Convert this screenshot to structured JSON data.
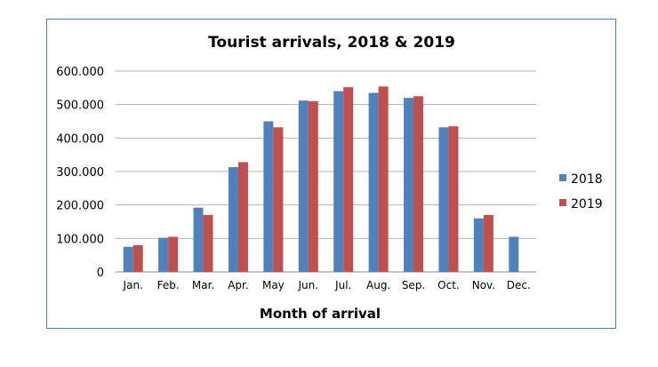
{
  "chart_data": {
    "type": "bar",
    "title": "Tourist arrivals, 2018 & 2019",
    "xlabel": "Month of arrival",
    "ylabel": "",
    "categories": [
      "Jan.",
      "Feb.",
      "Mar.",
      "Apr.",
      "May",
      "Jun.",
      "Jul.",
      "Aug.",
      "Sep.",
      "Oct.",
      "Nov.",
      "Dec."
    ],
    "ylim": [
      0,
      600000
    ],
    "yticks": [
      0,
      100000,
      200000,
      300000,
      400000,
      500000,
      600000
    ],
    "ytick_labels": [
      "0",
      "100.000",
      "200.000",
      "300.000",
      "400.000",
      "500.000",
      "600.000"
    ],
    "grid": true,
    "legend_position": "right",
    "series": [
      {
        "name": "2018",
        "color": "#4f81bd",
        "values": [
          75000,
          102000,
          192000,
          313000,
          450000,
          512000,
          540000,
          535000,
          520000,
          432000,
          160000,
          105000
        ]
      },
      {
        "name": "2019",
        "color": "#c0504d",
        "values": [
          80000,
          105000,
          170000,
          328000,
          432000,
          510000,
          552000,
          554000,
          525000,
          435000,
          170000,
          null
        ]
      }
    ]
  }
}
